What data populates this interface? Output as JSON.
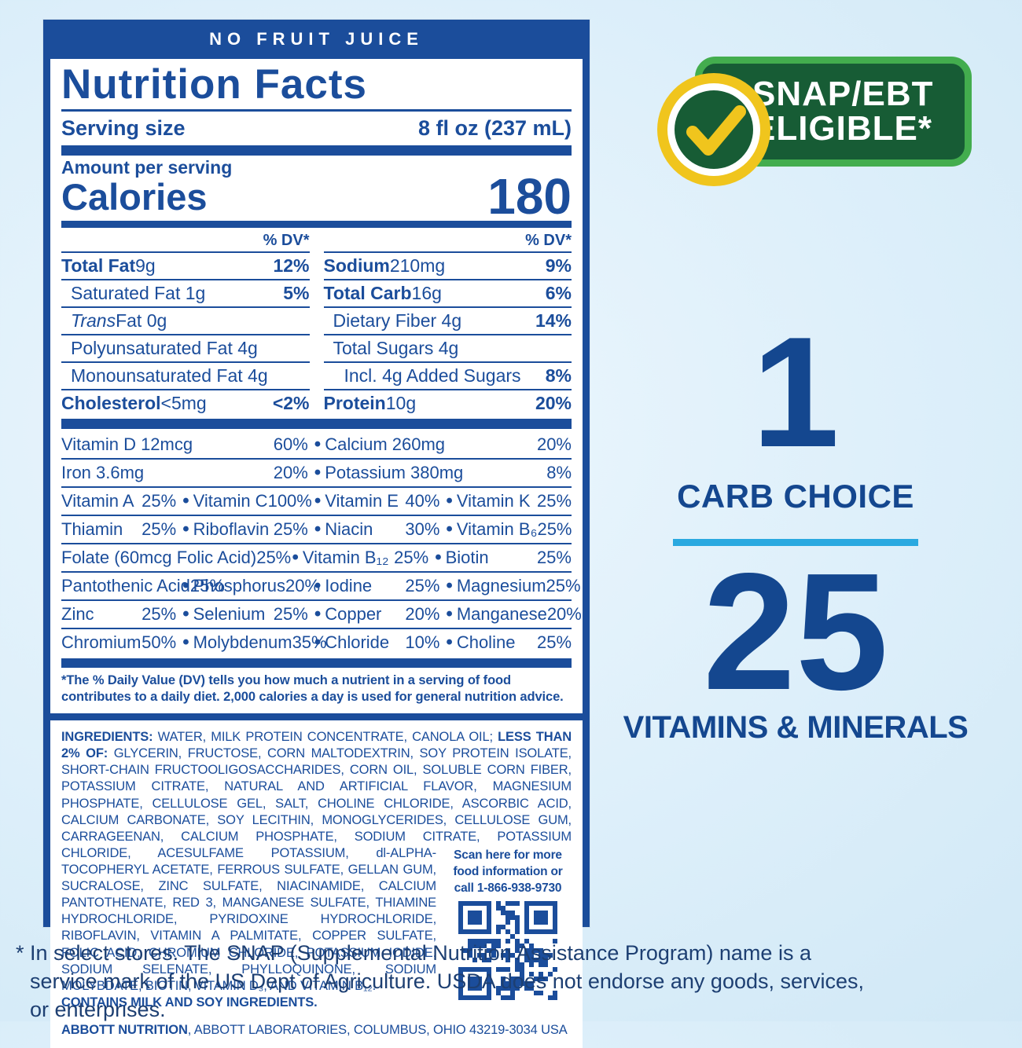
{
  "colors": {
    "label_blue": "#1b4d9b",
    "badge_green": "#175c35",
    "badge_green_border": "#43ad4e",
    "check_yellow": "#f0c51d",
    "divider_cyan": "#2aa9e0",
    "background_blue": "#ddeffa",
    "navy_text": "#1d3f72"
  },
  "banner": "NO FRUIT JUICE",
  "nf": {
    "title": "Nutrition Facts",
    "serving_label": "Serving size",
    "serving_value": "8 fl oz (237 mL)",
    "amount_label": "Amount per serving",
    "calories_label": "Calories",
    "calories_value": "180",
    "dv_header": "% DV*"
  },
  "facts": {
    "left": [
      {
        "b": "Total Fat",
        "t": " 9g",
        "dv": "12%"
      },
      {
        "t": "Saturated Fat 1g",
        "dv": "5%"
      },
      {
        "i": "Trans",
        "t": " Fat 0g"
      },
      {
        "t": "Polyunsaturated Fat 4g"
      },
      {
        "t": "Monounsaturated Fat 4g"
      },
      {
        "b": "Cholesterol",
        "t": " <5mg",
        "dv": "<2%"
      }
    ],
    "right": [
      {
        "b": "Sodium",
        "t": " 210mg",
        "dv": "9%"
      },
      {
        "b": "Total Carb",
        "t": " 16g",
        "dv": "6%"
      },
      {
        "t": "Dietary Fiber 4g",
        "dv": "14%"
      },
      {
        "t": "Total Sugars 4g"
      },
      {
        "t": "Incl. 4g Added Sugars",
        "dv": "8%"
      },
      {
        "b": "Protein",
        "t": " 10g",
        "dv": "20%"
      }
    ]
  },
  "vits": [
    [
      {
        "n": "Vitamin D 12mcg",
        "v": "60%"
      },
      {
        "n": "Calcium 260mg",
        "v": "20%"
      }
    ],
    [
      {
        "n": "Iron 3.6mg",
        "v": "20%"
      },
      {
        "n": "Potassium 380mg",
        "v": "8%"
      }
    ],
    [
      {
        "n": "Vitamin A",
        "v": "25%"
      },
      {
        "n": "Vitamin C",
        "v": "100%"
      },
      {
        "n": "Vitamin E",
        "v": "40%"
      },
      {
        "n": "Vitamin K",
        "v": "25%"
      }
    ],
    [
      {
        "n": "Thiamin",
        "v": "25%"
      },
      {
        "n": "Riboflavin",
        "v": "25%"
      },
      {
        "n": "Niacin",
        "v": "30%"
      },
      {
        "n": "Vitamin B₆",
        "v": "25%"
      }
    ],
    [
      {
        "n": "Folate (60mcg Folic Acid)",
        "v": "25%"
      },
      {
        "n": "Vitamin B₁₂",
        "v": "25%"
      },
      {
        "n": "Biotin",
        "v": "25%"
      }
    ],
    [
      {
        "n": "Pantothenic Acid",
        "v": "25%"
      },
      {
        "n": "Phosphorus",
        "v": "20%"
      },
      {
        "n": "Iodine",
        "v": "25%"
      },
      {
        "n": "Magnesium",
        "v": "25%"
      }
    ],
    [
      {
        "n": "Zinc",
        "v": "25%"
      },
      {
        "n": "Selenium",
        "v": "25%"
      },
      {
        "n": "Copper",
        "v": "20%"
      },
      {
        "n": "Manganese",
        "v": "20%"
      }
    ],
    [
      {
        "n": "Chromium",
        "v": "50%"
      },
      {
        "n": "Molybdenum",
        "v": "35%"
      },
      {
        "n": "Chloride",
        "v": "10%"
      },
      {
        "n": "Choline",
        "v": "25%"
      }
    ]
  ],
  "footnote": "*The % Daily Value (DV) tells you how much a nutrient in a serving of food contributes to a daily diet. 2,000 calories a day is used for general nutrition advice.",
  "ingredients": {
    "label": "INGREDIENTS:",
    "t1": " WATER, MILK PROTEIN CONCENTRATE, CANOLA OIL; ",
    "less_label": "LESS THAN 2% OF:",
    "t2": " GLYCERIN, FRUCTOSE, CORN MALTODEXTRIN, SOY PROTEIN ISOLATE, SHORT-CHAIN FRUCTOOLIGOSACCHARIDES, CORN OIL, SOLUBLE CORN FIBER, POTASSIUM CITRATE, NATURAL AND ARTIFICIAL FLAVOR, MAGNESIUM PHOSPHATE, CELLULOSE GEL, SALT, CHOLINE CHLORIDE, ASCORBIC ACID, CALCIUM CARBONATE, SOY LECITHIN, MONOGLYCERIDES, CELLULOSE GUM, CARRAGEENAN, CALCIUM PHOSPHATE, SODIUM CITRATE, POTASSIUM CHLORIDE,",
    "t3": " ACESULFAME POTASSIUM, dl-ALPHA-TOCOPHERYL ACETATE, FERROUS SULFATE, GELLAN GUM, SUCRALOSE, ZINC SULFATE, NIACINAMIDE, CALCIUM PANTOTHENATE, RED 3, MANGANESE SULFATE, THIAMINE HYDROCHLORIDE, PYRIDOXINE HYDROCHLORIDE, RIBOFLAVIN, VITAMIN A PALMITATE, COPPER SULFATE, FOLIC ACID, CHROMIUM CHLORIDE, POTASSIUM IODIDE, SODIUM SELENATE, PHYLLOQUINONE, SODIUM MOLYBDATE, BIOTIN, VITAMIN D₃, AND VITAMIN B₁₂.",
    "contains": "CONTAINS MILK AND SOY INGREDIENTS.",
    "abbott_bold": "ABBOTT NUTRITION",
    "abbott_rest": ", ABBOTT LABORATORIES, COLUMBUS, OHIO 43219-3034 USA",
    "scan": "Scan here for more food information or call 1-866-938-9730"
  },
  "badge": {
    "line1": "SNAP/EBT",
    "line2": "ELIGIBLE*"
  },
  "right": {
    "carb_number": "1",
    "carb_label": "CARB CHOICE",
    "vit_number": "25",
    "vit_label": "VITAMINS & MINERALS"
  },
  "disclaimer": "* In select stores. The SNAP (Supplemental Nutrition Assistance Program) name is a service mark of the US Dept of Agriculture. USDA does not endorse any goods, services, or enterprises."
}
